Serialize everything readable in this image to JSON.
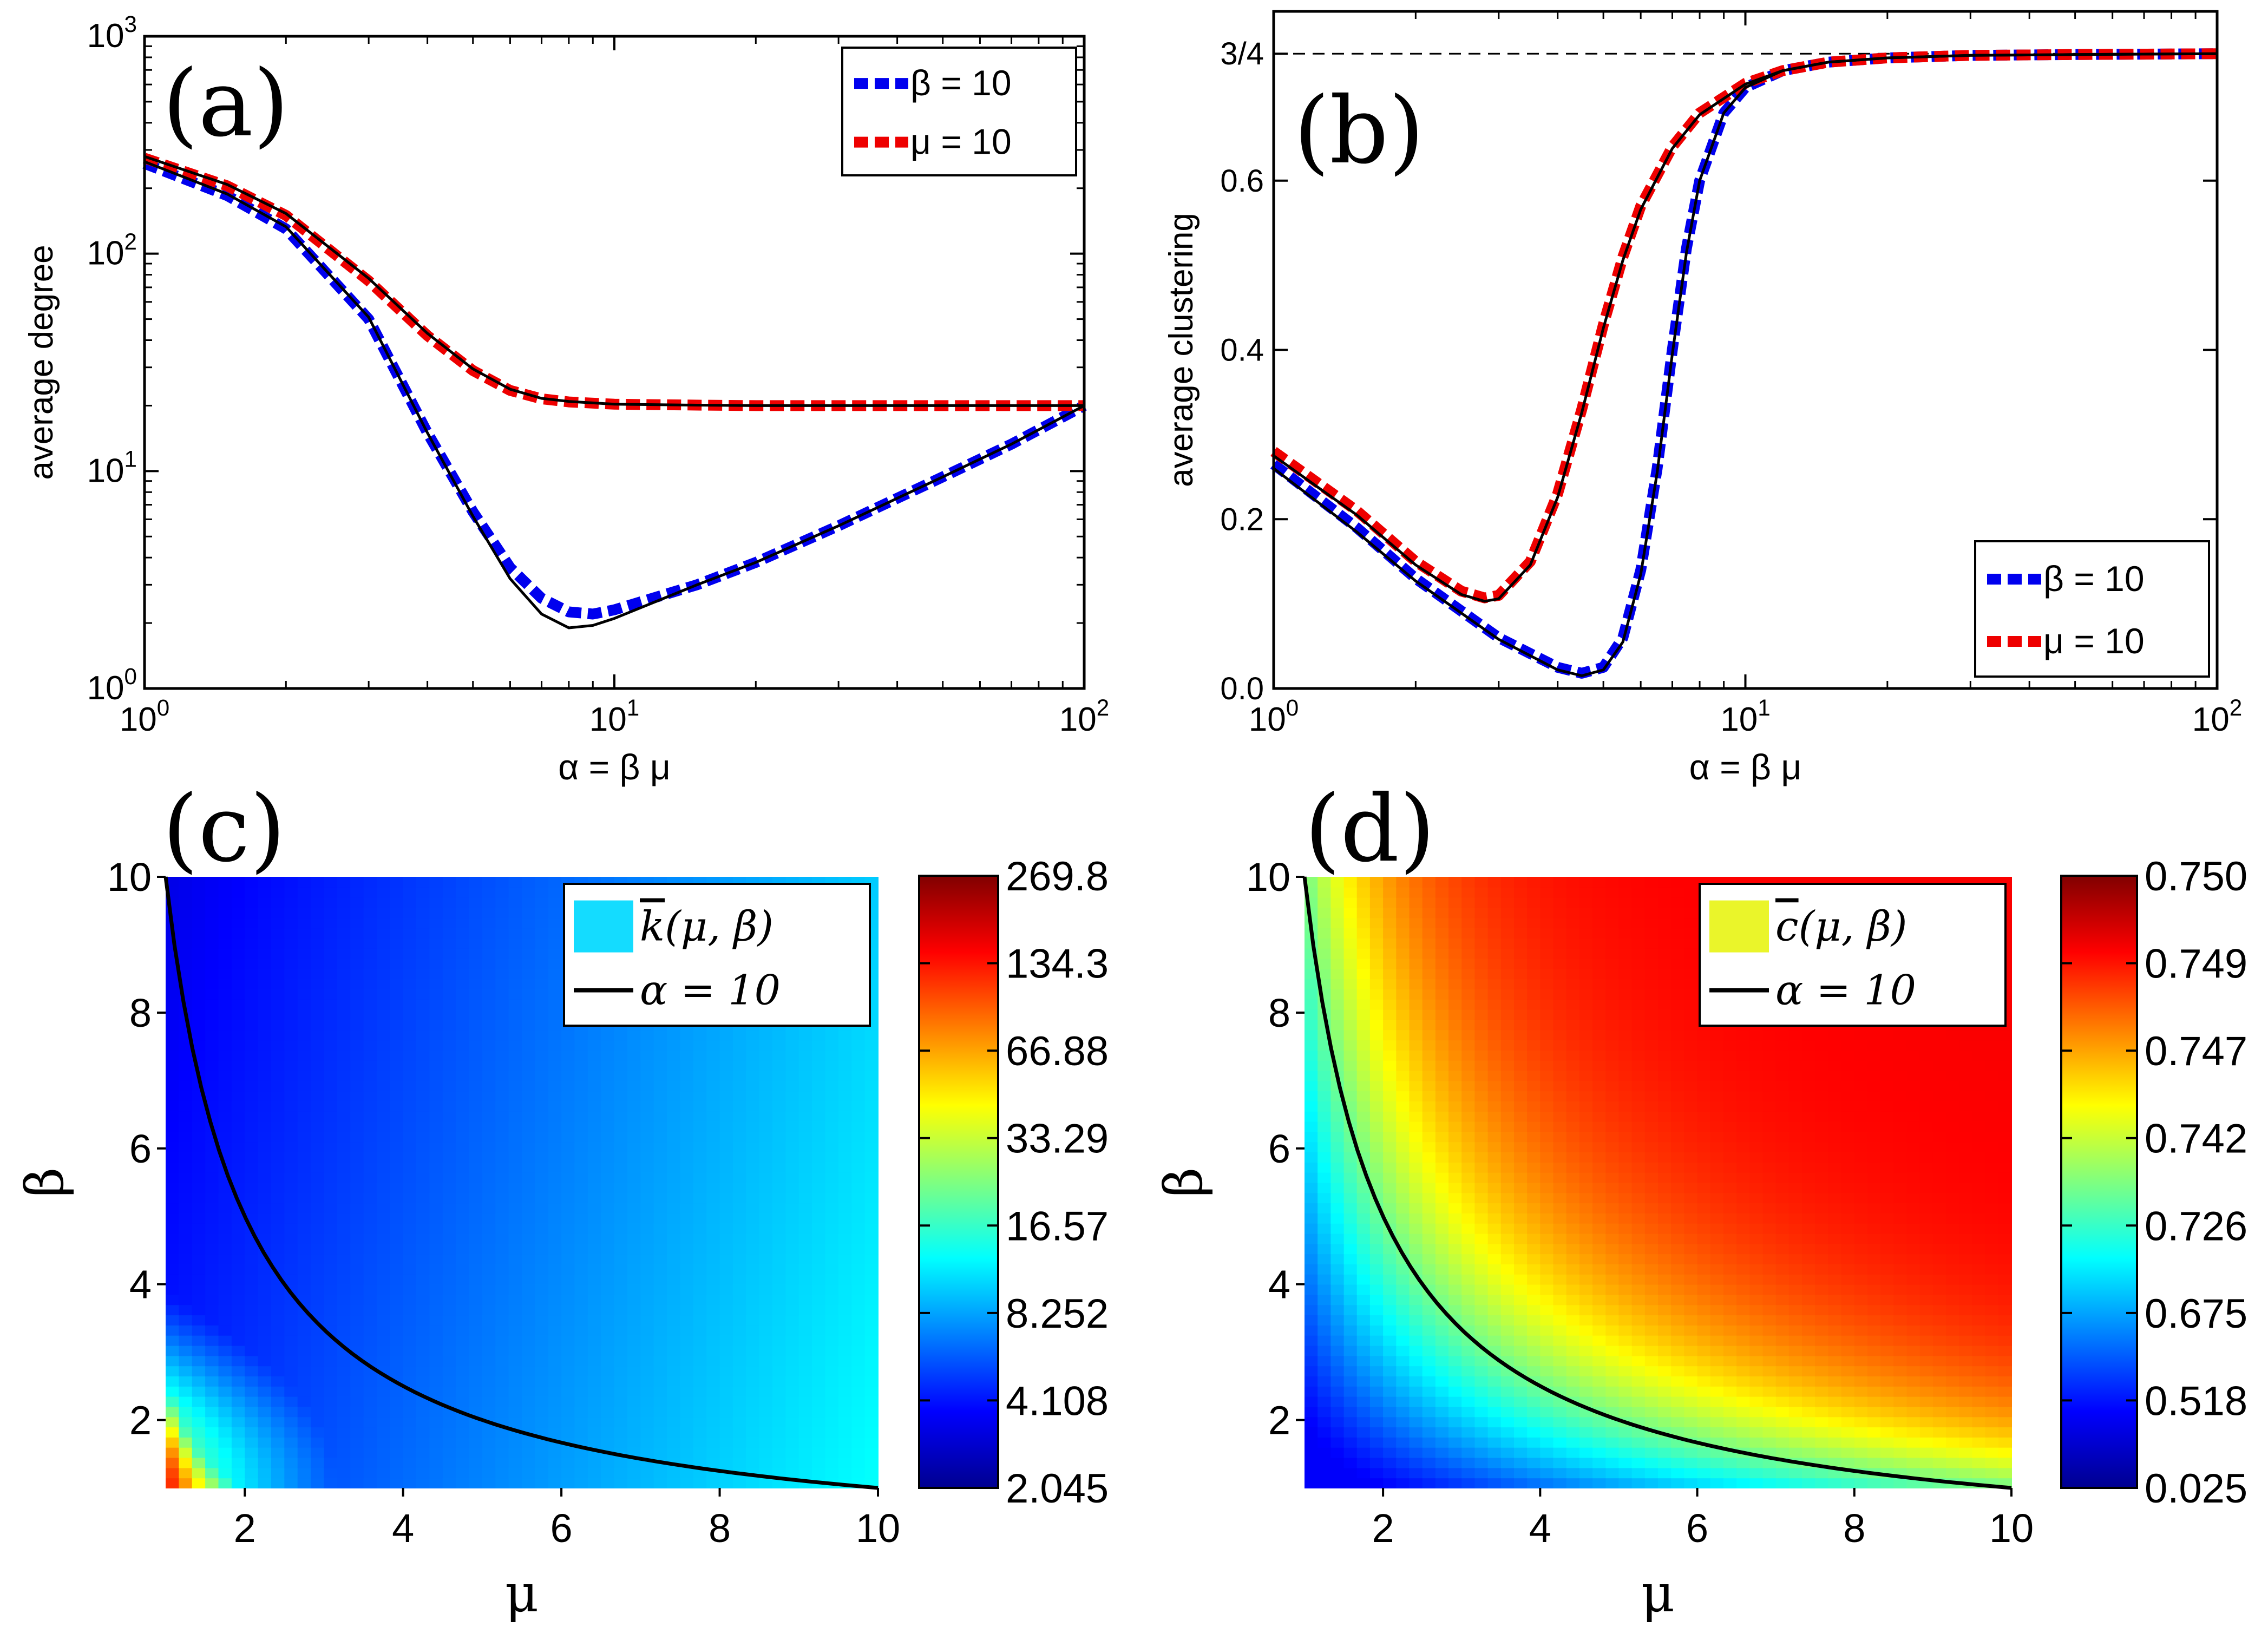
{
  "chart_data": [
    {
      "panel_label": "(a)",
      "type": "line",
      "xlabel": "α = β μ",
      "ylabel": "average degree",
      "xscale": "log",
      "xlim": [
        1,
        100
      ],
      "yscale": "log",
      "ylim": [
        1,
        1000
      ],
      "xticks": [
        {
          "v": 1,
          "base": "10",
          "exp": "0"
        },
        {
          "v": 10,
          "base": "10",
          "exp": "1"
        },
        {
          "v": 100,
          "base": "10",
          "exp": "2"
        }
      ],
      "yticks": [
        {
          "v": 1,
          "base": "10",
          "exp": "0"
        },
        {
          "v": 10,
          "base": "10",
          "exp": "1"
        },
        {
          "v": 100,
          "base": "10",
          "exp": "2"
        },
        {
          "v": 1000,
          "base": "10",
          "exp": "3"
        }
      ],
      "legend_position": "top-right",
      "series": [
        {
          "name": "β = 10",
          "color": "#0000ee",
          "style": "dashed",
          "x": [
            1,
            1.5,
            2,
            3,
            4,
            5,
            6,
            7,
            8,
            9,
            10,
            15,
            20,
            30,
            50,
            70,
            100
          ],
          "y": [
            260,
            185,
            130,
            50,
            15,
            6.5,
            3.6,
            2.6,
            2.25,
            2.2,
            2.3,
            3.0,
            3.8,
            5.6,
            9.4,
            13.3,
            20
          ]
        },
        {
          "name": "μ = 10",
          "color": "#ee0000",
          "style": "dashed",
          "x": [
            1,
            1.5,
            2,
            3,
            4,
            5,
            6,
            7,
            8,
            10,
            15,
            20,
            30,
            50,
            70,
            100
          ],
          "y": [
            275,
            205,
            150,
            75,
            42,
            29,
            23.5,
            21.5,
            20.8,
            20.3,
            20.1,
            20,
            20,
            20,
            20,
            20
          ]
        },
        {
          "name": "theory β = 10",
          "color": "#000000",
          "style": "solid",
          "legend": false,
          "x": [
            1,
            1.5,
            2,
            3,
            4,
            5,
            6,
            7,
            8,
            9,
            10,
            15,
            20,
            30,
            50,
            70,
            100
          ],
          "y": [
            265,
            188,
            133,
            51,
            15,
            6.2,
            3.2,
            2.2,
            1.9,
            1.95,
            2.1,
            3.0,
            3.8,
            5.6,
            9.4,
            13.3,
            20
          ]
        },
        {
          "name": "theory μ = 10",
          "color": "#000000",
          "style": "solid",
          "legend": false,
          "x": [
            1,
            1.5,
            2,
            3,
            4,
            5,
            6,
            7,
            8,
            10,
            15,
            20,
            30,
            50,
            70,
            100
          ],
          "y": [
            280,
            208,
            153,
            77,
            43,
            29.5,
            23.8,
            21.6,
            20.9,
            20.3,
            20.1,
            20,
            20,
            20,
            20,
            20
          ]
        }
      ]
    },
    {
      "panel_label": "(b)",
      "type": "line",
      "xlabel": "α = β μ",
      "ylabel": "average clustering",
      "xscale": "log",
      "xlim": [
        1,
        100
      ],
      "yscale": "linear",
      "ylim": [
        0,
        0.8
      ],
      "xticks": [
        {
          "v": 1,
          "base": "10",
          "exp": "0"
        },
        {
          "v": 10,
          "base": "10",
          "exp": "1"
        },
        {
          "v": 100,
          "base": "10",
          "exp": "2"
        }
      ],
      "yticks": [
        {
          "v": 0,
          "label": "0.0"
        },
        {
          "v": 0.2,
          "label": "0.2"
        },
        {
          "v": 0.4,
          "label": "0.4"
        },
        {
          "v": 0.6,
          "label": "0.6"
        },
        {
          "v": 0.75,
          "label": "3/4"
        }
      ],
      "reference_line": {
        "y": 0.75,
        "style": "dashed",
        "color": "#000000"
      },
      "legend_position": "bottom-right",
      "series": [
        {
          "name": "β = 10",
          "color": "#0000ee",
          "style": "dashed",
          "x": [
            1,
            1.5,
            2,
            3,
            4,
            4.5,
            5,
            5.5,
            6,
            6.5,
            7,
            7.5,
            8,
            9,
            10,
            12,
            15,
            20,
            30,
            50,
            100
          ],
          "y": [
            0.265,
            0.19,
            0.13,
            0.06,
            0.025,
            0.018,
            0.025,
            0.06,
            0.14,
            0.26,
            0.4,
            0.52,
            0.6,
            0.68,
            0.71,
            0.73,
            0.74,
            0.745,
            0.748,
            0.749,
            0.75
          ]
        },
        {
          "name": "μ = 10",
          "color": "#ee0000",
          "style": "dashed",
          "x": [
            1,
            1.5,
            2,
            2.5,
            2.8,
            3,
            3.5,
            4,
            4.5,
            5,
            5.5,
            6,
            7,
            8,
            10,
            12,
            15,
            20,
            30,
            50,
            100
          ],
          "y": [
            0.28,
            0.21,
            0.15,
            0.115,
            0.107,
            0.11,
            0.15,
            0.23,
            0.33,
            0.43,
            0.51,
            0.57,
            0.64,
            0.68,
            0.715,
            0.73,
            0.74,
            0.745,
            0.748,
            0.749,
            0.75
          ]
        },
        {
          "name": "theory β = 10",
          "color": "#000000",
          "style": "solid",
          "legend": false,
          "x": [
            1,
            1.5,
            2,
            3,
            4,
            4.5,
            5,
            5.5,
            6,
            6.5,
            7,
            7.5,
            8,
            9,
            10,
            12,
            15,
            20,
            30,
            50,
            100
          ],
          "y": [
            0.26,
            0.185,
            0.127,
            0.058,
            0.022,
            0.015,
            0.022,
            0.055,
            0.135,
            0.255,
            0.395,
            0.515,
            0.6,
            0.68,
            0.71,
            0.73,
            0.74,
            0.745,
            0.748,
            0.749,
            0.75
          ]
        },
        {
          "name": "theory μ = 10",
          "color": "#000000",
          "style": "solid",
          "legend": false,
          "x": [
            1,
            1.5,
            2,
            2.5,
            2.8,
            3,
            3.5,
            4,
            4.5,
            5,
            5.5,
            6,
            7,
            8,
            10,
            12,
            15,
            20,
            30,
            50,
            100
          ],
          "y": [
            0.275,
            0.205,
            0.146,
            0.111,
            0.103,
            0.106,
            0.146,
            0.226,
            0.326,
            0.426,
            0.506,
            0.566,
            0.638,
            0.678,
            0.714,
            0.73,
            0.74,
            0.745,
            0.748,
            0.749,
            0.75
          ]
        }
      ]
    },
    {
      "panel_label": "(c)",
      "type": "heatmap",
      "xlabel": "μ",
      "ylabel": "β",
      "xlim": [
        1,
        10
      ],
      "ylim": [
        1,
        10
      ],
      "xticks": [
        2,
        4,
        6,
        8,
        10
      ],
      "yticks": [
        2,
        4,
        6,
        8,
        10
      ],
      "field": "average degree k̄(μ, β)",
      "colorbar_ticks": [
        "269.8",
        "134.3",
        "66.88",
        "33.29",
        "16.57",
        "8.252",
        "4.108",
        "2.045"
      ],
      "legend_position": "top-right",
      "legend": [
        {
          "type": "patch",
          "color": "#14dcff",
          "base": "k",
          "args": "(μ, β)"
        },
        {
          "type": "line",
          "color": "#000000",
          "text": "α = 10"
        }
      ],
      "curve": {
        "name": "α = 10",
        "equation": "β = 10/μ"
      }
    },
    {
      "panel_label": "(d)",
      "type": "heatmap",
      "xlabel": "μ",
      "ylabel": "β",
      "xlim": [
        1,
        10
      ],
      "ylim": [
        1,
        10
      ],
      "xticks": [
        2,
        4,
        6,
        8,
        10
      ],
      "yticks": [
        2,
        4,
        6,
        8,
        10
      ],
      "field": "average clustering c̄(μ, β)",
      "colorbar_ticks": [
        "0.750",
        "0.749",
        "0.747",
        "0.742",
        "0.726",
        "0.675",
        "0.518",
        "0.025"
      ],
      "legend_position": "top-right",
      "legend": [
        {
          "type": "patch",
          "color": "#eaf52a",
          "base": "c",
          "args": "(μ, β)"
        },
        {
          "type": "line",
          "color": "#000000",
          "text": "α = 10"
        }
      ],
      "curve": {
        "name": "α = 10",
        "equation": "β = 10/μ"
      }
    }
  ]
}
